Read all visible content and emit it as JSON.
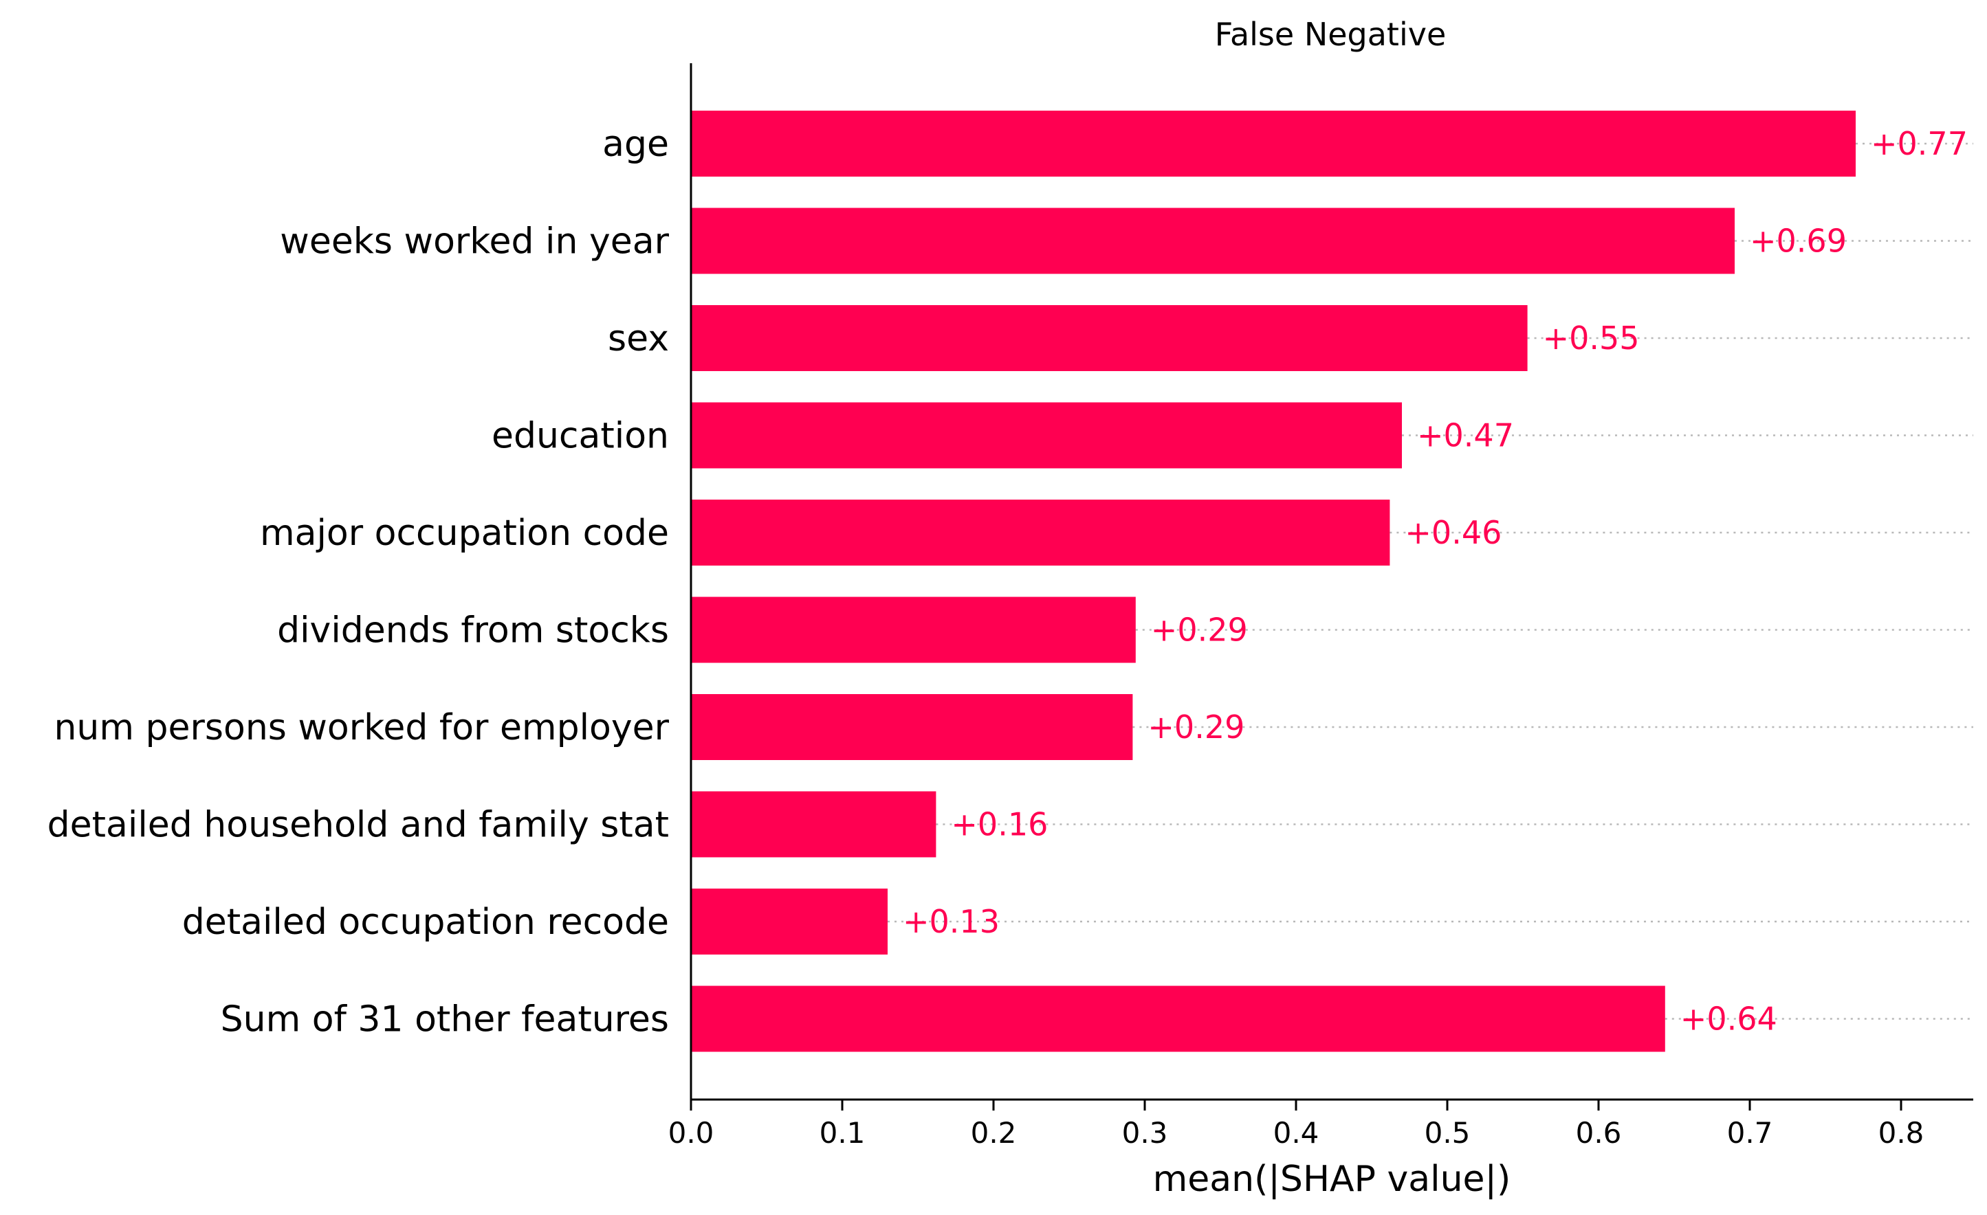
{
  "chart_data": {
    "type": "bar",
    "orientation": "horizontal",
    "title": "False Negative",
    "xlabel": "mean(|SHAP value|)",
    "ylabel": "",
    "xlim": [
      0,
      0.85
    ],
    "xticks": [
      "0.0",
      "0.1",
      "0.2",
      "0.3",
      "0.4",
      "0.5",
      "0.6",
      "0.7",
      "0.8"
    ],
    "grid": false,
    "legend": "none",
    "bar_color": "#ff0051",
    "label_color": "#ff0051",
    "categories": [
      "age",
      "weeks worked in year",
      "sex",
      "education",
      "major occupation code",
      "dividends from stocks",
      "num persons worked for employer",
      "detailed household and family stat",
      "detailed occupation recode",
      "Sum of 31 other features"
    ],
    "values": [
      0.77,
      0.69,
      0.553,
      0.47,
      0.462,
      0.294,
      0.292,
      0.162,
      0.13,
      0.644
    ],
    "value_labels": [
      "+0.77",
      "+0.69",
      "+0.55",
      "+0.47",
      "+0.46",
      "+0.29",
      "+0.29",
      "+0.16",
      "+0.13",
      "+0.64"
    ]
  }
}
